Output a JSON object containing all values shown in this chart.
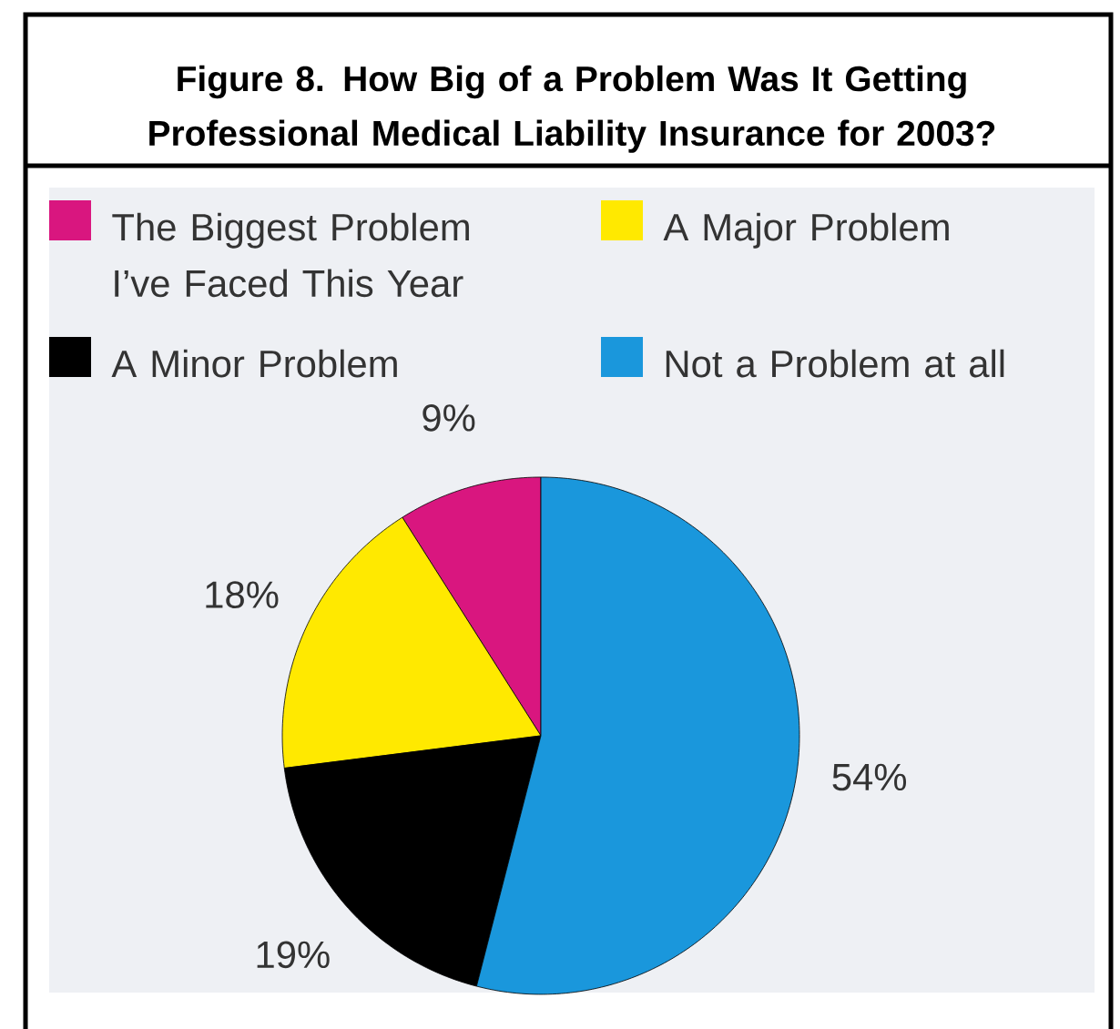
{
  "chart_data": {
    "type": "pie",
    "title": "Figure 8. How Big of a Problem Was It Getting Professional Medical Liability Insurance for 2003?",
    "categories": [
      "The Biggest Problem I’ve Faced This Year",
      "A Major Problem",
      "A Minor Problem",
      "Not a Problem at all"
    ],
    "values": [
      9,
      18,
      19,
      54
    ],
    "colors": [
      "#d9167f",
      "#ffe900",
      "#000000",
      "#1a97dc"
    ],
    "value_labels": [
      "9%",
      "18%",
      "19%",
      "54%"
    ],
    "legend": "top"
  }
}
